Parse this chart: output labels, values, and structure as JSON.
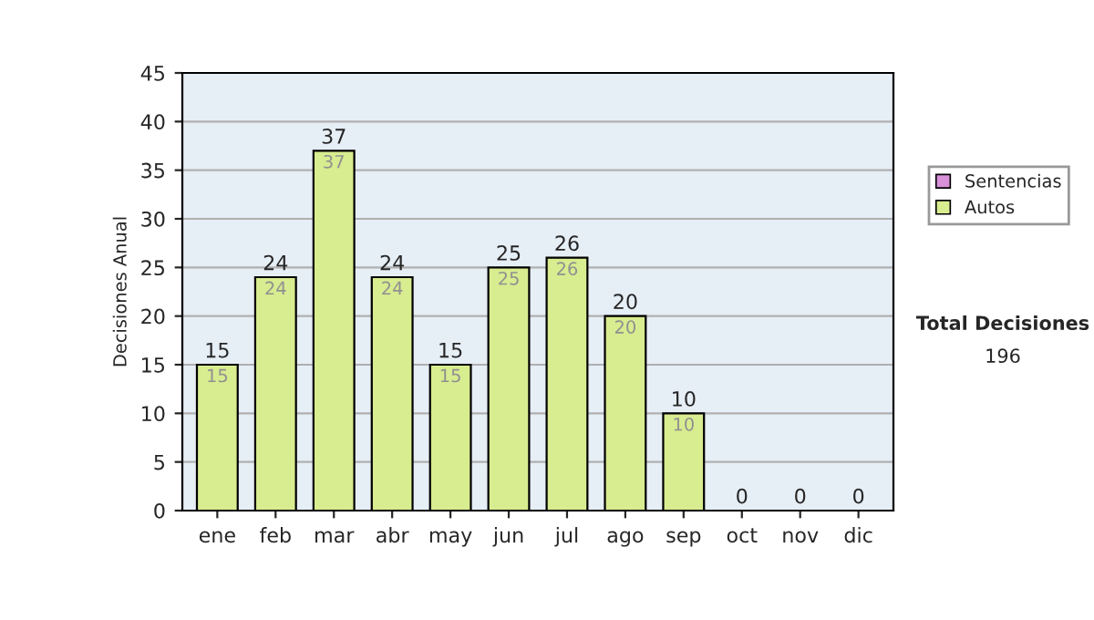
{
  "chart_data": {
    "type": "bar",
    "stacked": true,
    "categories": [
      "ene",
      "feb",
      "mar",
      "abr",
      "may",
      "jun",
      "jul",
      "ago",
      "sep",
      "oct",
      "nov",
      "dic"
    ],
    "series": [
      {
        "name": "Sentencias",
        "color": "#d890d8",
        "values": [
          0,
          0,
          0,
          0,
          0,
          0,
          0,
          0,
          0,
          0,
          0,
          0
        ]
      },
      {
        "name": "Autos",
        "color": "#d8ec90",
        "values": [
          15,
          24,
          37,
          24,
          15,
          25,
          26,
          20,
          10,
          0,
          0,
          0
        ],
        "value_labels": [
          "15",
          "24",
          "37",
          "24",
          "15",
          "25",
          "26",
          "20",
          "10",
          null,
          null,
          null
        ]
      }
    ],
    "totals": [
      "15",
      "24",
      "37",
      "24",
      "15",
      "25",
      "26",
      "20",
      "10",
      "0",
      "0",
      "0"
    ],
    "ylabel": "Decisiones Anual",
    "ylim": [
      0,
      45
    ],
    "yticks": [
      0,
      5,
      10,
      15,
      20,
      25,
      30,
      35,
      40,
      45
    ],
    "grid": "y",
    "legend": "right",
    "annotations": [
      "Total Decisiones",
      "196"
    ]
  }
}
